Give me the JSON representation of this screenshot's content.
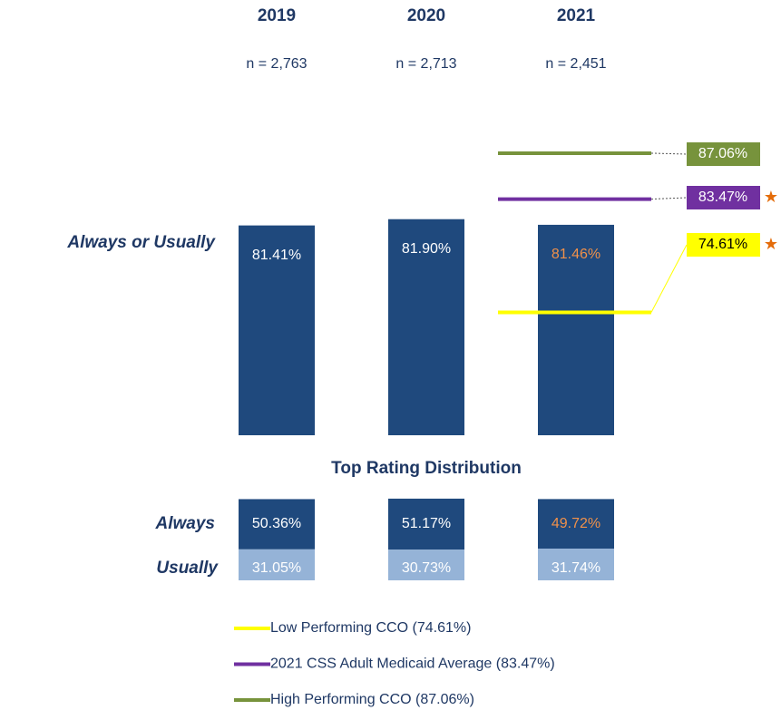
{
  "chart_data": {
    "type": "bar",
    "categories": [
      "2019",
      "2020",
      "2021"
    ],
    "sample_sizes": [
      "n = 2,763",
      "n = 2,713",
      "n = 2,451"
    ],
    "row_label": "Always or Usually",
    "values": [
      81.41,
      81.9,
      81.46
    ],
    "value_labels": [
      "81.41%",
      "81.90%",
      "81.46%"
    ],
    "label_colors": [
      "#ffffff",
      "#ffffff",
      "#f0914a"
    ],
    "color": "#1f497d",
    "ylim": [
      65,
      90
    ],
    "reference_lines": [
      {
        "name": "Low Performing CCO (74.61%)",
        "value": 74.61,
        "label": "74.61%",
        "color": "#ffff00",
        "text_color": "#000000",
        "marker": "★"
      },
      {
        "name": "2021 CSS Adult Medicaid Average (83.47%)",
        "value": 83.47,
        "label": "83.47%",
        "color": "#7030a0",
        "text_color": "#ffffff",
        "marker": "★"
      },
      {
        "name": "High Performing CCO (87.06%)",
        "value": 87.06,
        "label": "87.06%",
        "color": "#77933c",
        "text_color": "#ffffff"
      }
    ],
    "marker_color": "#e46c0a",
    "distribution": {
      "title": "Top Rating Distribution",
      "series": [
        {
          "name": "Always",
          "color": "#1f497d",
          "values": [
            50.36,
            51.17,
            49.72
          ],
          "value_labels": [
            "50.36%",
            "51.17%",
            "49.72%"
          ],
          "label_colors": [
            "#ffffff",
            "#ffffff",
            "#f0914a"
          ]
        },
        {
          "name": "Usually",
          "color": "#95b3d7",
          "values": [
            31.05,
            30.73,
            31.74
          ],
          "value_labels": [
            "31.05%",
            "30.73%",
            "31.74%"
          ],
          "label_colors": [
            "#ffffff",
            "#ffffff",
            "#ffffff"
          ]
        }
      ]
    }
  }
}
